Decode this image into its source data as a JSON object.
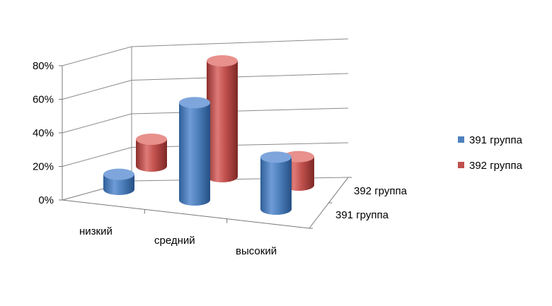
{
  "chart_data": {
    "type": "bar",
    "subtype": "3d-cylinder",
    "title": "",
    "categories": [
      "низкий",
      "средний",
      "высокий"
    ],
    "series": [
      {
        "name": "391 группа",
        "values": [
          9,
          58,
          31
        ]
      },
      {
        "name": "392 группа",
        "values": [
          16,
          69,
          17
        ]
      }
    ],
    "y_ticks": [
      "0%",
      "20%",
      "40%",
      "60%",
      "80%"
    ],
    "ylim": [
      0,
      80
    ],
    "grid": true,
    "legend_position": "right",
    "colors": {
      "391 группа": "#4f81bd",
      "392 группа": "#c0504d"
    }
  }
}
